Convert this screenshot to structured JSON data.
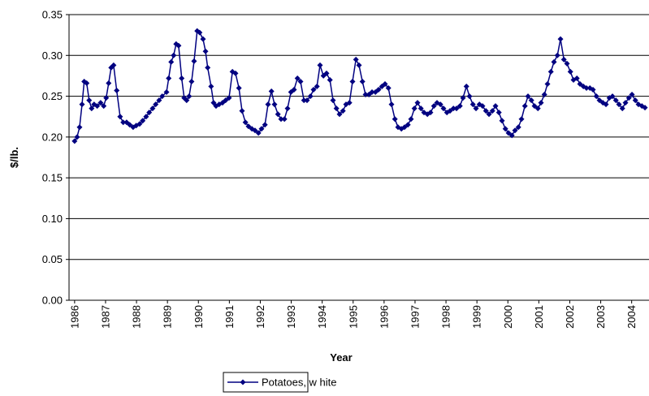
{
  "chart_data": {
    "type": "line",
    "x_label": "Year",
    "y_label": "$/lb.",
    "series": [
      {
        "name": "Potatoes, w hite",
        "color": "#000080",
        "marker": "diamond",
        "x": [
          1986.0,
          1986.08,
          1986.16,
          1986.24,
          1986.31,
          1986.39,
          1986.47,
          1986.55,
          1986.63,
          1986.73,
          1986.84,
          1986.94,
          1987.02,
          1987.1,
          1987.18,
          1987.26,
          1987.36,
          1987.47,
          1987.57,
          1987.68,
          1987.78,
          1987.89,
          1987.99,
          1988.1,
          1988.2,
          1988.31,
          1988.41,
          1988.52,
          1988.62,
          1988.73,
          1988.83,
          1988.97,
          1989.04,
          1989.12,
          1989.2,
          1989.28,
          1989.36,
          1989.46,
          1989.54,
          1989.62,
          1989.7,
          1989.78,
          1989.86,
          1989.96,
          1990.04,
          1990.15,
          1990.23,
          1990.3,
          1990.41,
          1990.49,
          1990.57,
          1990.67,
          1990.78,
          1990.88,
          1990.99,
          1991.1,
          1991.2,
          1991.31,
          1991.41,
          1991.52,
          1991.62,
          1991.73,
          1991.83,
          1991.94,
          1992.04,
          1992.15,
          1992.25,
          1992.36,
          1992.46,
          1992.57,
          1992.67,
          1992.78,
          1992.88,
          1992.99,
          1993.09,
          1993.2,
          1993.3,
          1993.41,
          1993.51,
          1993.62,
          1993.72,
          1993.83,
          1993.93,
          1994.04,
          1994.14,
          1994.25,
          1994.35,
          1994.46,
          1994.56,
          1994.67,
          1994.77,
          1994.88,
          1994.98,
          1995.09,
          1995.19,
          1995.3,
          1995.4,
          1995.51,
          1995.61,
          1995.72,
          1995.82,
          1995.93,
          1996.03,
          1996.14,
          1996.24,
          1996.35,
          1996.45,
          1996.56,
          1996.66,
          1996.77,
          1996.87,
          1996.98,
          1997.08,
          1997.19,
          1997.29,
          1997.4,
          1997.5,
          1997.61,
          1997.71,
          1997.82,
          1997.92,
          1998.03,
          1998.13,
          1998.24,
          1998.34,
          1998.45,
          1998.55,
          1998.66,
          1998.76,
          1998.87,
          1998.97,
          1999.08,
          1999.18,
          1999.29,
          1999.39,
          1999.5,
          1999.6,
          1999.71,
          1999.81,
          1999.92,
          2000.02,
          2000.13,
          2000.23,
          2000.34,
          2000.44,
          2000.55,
          2000.65,
          2000.76,
          2000.86,
          2000.97,
          2001.07,
          2001.18,
          2001.28,
          2001.39,
          2001.49,
          2001.6,
          2001.7,
          2001.81,
          2001.91,
          2002.02,
          2002.12,
          2002.23,
          2002.33,
          2002.44,
          2002.54,
          2002.65,
          2002.75,
          2002.86,
          2002.96,
          2003.07,
          2003.17,
          2003.28,
          2003.38,
          2003.49,
          2003.59,
          2003.7,
          2003.8,
          2003.91,
          2004.01,
          2004.12,
          2004.22,
          2004.33,
          2004.43
        ],
        "values": [
          0.195,
          0.2,
          0.212,
          0.24,
          0.268,
          0.266,
          0.245,
          0.235,
          0.24,
          0.238,
          0.242,
          0.238,
          0.248,
          0.266,
          0.285,
          0.288,
          0.257,
          0.225,
          0.218,
          0.218,
          0.215,
          0.212,
          0.214,
          0.216,
          0.22,
          0.225,
          0.23,
          0.235,
          0.24,
          0.245,
          0.25,
          0.255,
          0.272,
          0.292,
          0.3,
          0.314,
          0.312,
          0.272,
          0.248,
          0.245,
          0.25,
          0.268,
          0.293,
          0.33,
          0.328,
          0.32,
          0.305,
          0.285,
          0.262,
          0.242,
          0.238,
          0.24,
          0.242,
          0.245,
          0.248,
          0.28,
          0.278,
          0.26,
          0.232,
          0.218,
          0.213,
          0.21,
          0.208,
          0.205,
          0.21,
          0.215,
          0.24,
          0.256,
          0.24,
          0.228,
          0.222,
          0.222,
          0.235,
          0.255,
          0.258,
          0.272,
          0.268,
          0.245,
          0.245,
          0.25,
          0.258,
          0.262,
          0.288,
          0.275,
          0.278,
          0.27,
          0.245,
          0.235,
          0.228,
          0.232,
          0.24,
          0.242,
          0.268,
          0.295,
          0.288,
          0.268,
          0.252,
          0.252,
          0.255,
          0.255,
          0.258,
          0.262,
          0.265,
          0.26,
          0.24,
          0.222,
          0.212,
          0.21,
          0.212,
          0.215,
          0.222,
          0.235,
          0.242,
          0.235,
          0.23,
          0.228,
          0.23,
          0.238,
          0.242,
          0.24,
          0.235,
          0.23,
          0.232,
          0.235,
          0.235,
          0.238,
          0.248,
          0.262,
          0.25,
          0.24,
          0.235,
          0.24,
          0.238,
          0.232,
          0.228,
          0.232,
          0.238,
          0.23,
          0.22,
          0.21,
          0.205,
          0.202,
          0.208,
          0.212,
          0.222,
          0.238,
          0.25,
          0.245,
          0.238,
          0.235,
          0.242,
          0.252,
          0.265,
          0.28,
          0.292,
          0.3,
          0.32,
          0.295,
          0.29,
          0.28,
          0.27,
          0.272,
          0.265,
          0.262,
          0.26,
          0.26,
          0.258,
          0.25,
          0.245,
          0.242,
          0.24,
          0.248,
          0.25,
          0.245,
          0.24,
          0.235,
          0.242,
          0.248,
          0.252,
          0.245,
          0.24,
          0.238,
          0.236
        ]
      }
    ],
    "xlim": [
      1985.82,
      2004.56
    ],
    "xticks": [
      1986,
      1987,
      1988,
      1989,
      1990,
      1991,
      1992,
      1993,
      1994,
      1995,
      1996,
      1997,
      1998,
      1999,
      2000,
      2001,
      2002,
      2003,
      2004
    ],
    "ylim": [
      0,
      0.35
    ],
    "yticks": [
      {
        "value": 0,
        "label": "0.00"
      },
      0.05,
      {
        "value": 0.1,
        "label": "0.10"
      },
      0.15,
      {
        "value": 0.2,
        "label": "0.20"
      },
      0.25,
      {
        "value": 0.3,
        "label": "0.30"
      },
      0.35
    ],
    "grid": true,
    "legend": "bottom"
  }
}
